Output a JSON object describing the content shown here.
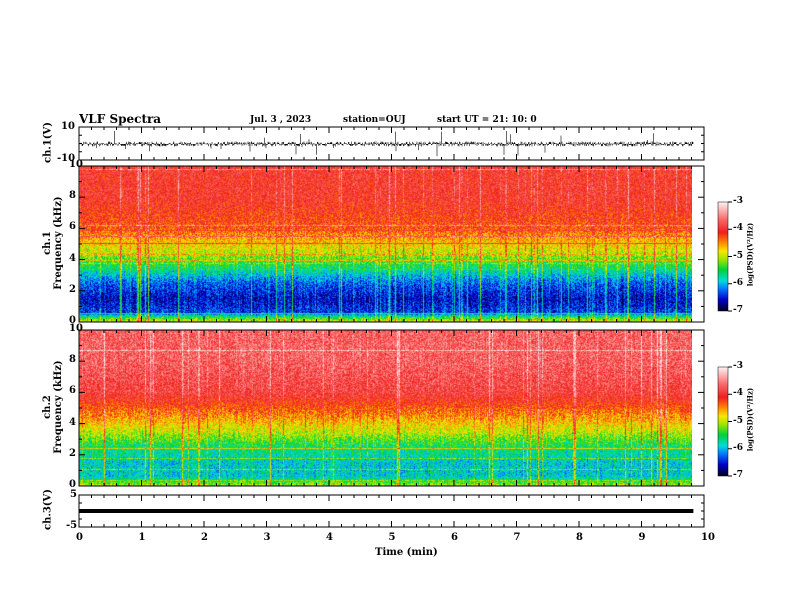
{
  "header": {
    "title": "VLF Spectra",
    "date": "Jul. 3 , 2023",
    "station": "station=OUJ",
    "start": "start UT =  21: 10: 0"
  },
  "chart_data": [
    {
      "type": "line",
      "name": "ch1-waveform",
      "ylabel": "ch.1(V)",
      "ylim": [
        -10,
        10
      ],
      "yticks": [
        "10",
        "-10"
      ],
      "xlim": [
        0,
        10
      ],
      "baseline": 0,
      "data_end_min": 9.83
    },
    {
      "type": "heatmap",
      "name": "ch1-spectrogram",
      "ylabel": "ch.1\nFrequency (kHz)",
      "ylabel_lines": [
        "ch.1",
        "Frequency (kHz)"
      ],
      "ylim": [
        0,
        10
      ],
      "yticks": [
        "0",
        "2",
        "4",
        "6",
        "8",
        "10"
      ],
      "xlim": [
        0,
        10
      ],
      "data_end_min": 9.83,
      "colorbar": {
        "label": "log(PSD)(V²/Hz)",
        "range": [
          -7,
          -3
        ],
        "ticks": [
          "-3",
          "-4",
          "-5",
          "-6",
          "-7"
        ]
      },
      "profile_freq_khz": [
        0,
        0.3,
        0.6,
        1.5,
        2.5,
        3.0,
        3.5,
        4.5,
        6,
        8,
        10
      ],
      "profile_log_psd": [
        -4.8,
        -5.4,
        -6.4,
        -6.6,
        -6.3,
        -6.0,
        -5.6,
        -5.0,
        -4.3,
        -4.0,
        -4.0
      ]
    },
    {
      "type": "heatmap",
      "name": "ch2-spectrogram",
      "ylabel_lines": [
        "ch.2",
        "Frequency (kHz)"
      ],
      "ylim": [
        0,
        10
      ],
      "yticks": [
        "0",
        "2",
        "4",
        "6",
        "8",
        "10"
      ],
      "xlim": [
        0,
        10
      ],
      "data_end_min": 9.83,
      "colorbar": {
        "label": "log(PSD)(V²/Hz)",
        "range": [
          -7,
          -3
        ],
        "ticks": [
          "-3",
          "-4",
          "-5",
          "-6",
          "-7"
        ]
      },
      "profile_freq_khz": [
        0,
        0.3,
        0.6,
        1.5,
        2.5,
        3.0,
        3.5,
        4.5,
        6,
        8,
        10
      ],
      "profile_log_psd": [
        -5.0,
        -5.4,
        -5.9,
        -5.9,
        -5.6,
        -5.3,
        -5.0,
        -4.5,
        -3.9,
        -3.7,
        -3.7
      ]
    },
    {
      "type": "line",
      "name": "ch3-waveform",
      "ylabel": "ch.3(V)",
      "ylim": [
        -5,
        5
      ],
      "yticks": [
        "5",
        "-5"
      ],
      "xlim": [
        0,
        10
      ],
      "constant_value": 0,
      "data_end_min": 9.83
    }
  ],
  "xaxis": {
    "label": "Time (min)",
    "ticks": [
      "0",
      "1",
      "2",
      "3",
      "4",
      "5",
      "6",
      "7",
      "8",
      "9",
      "10"
    ]
  }
}
